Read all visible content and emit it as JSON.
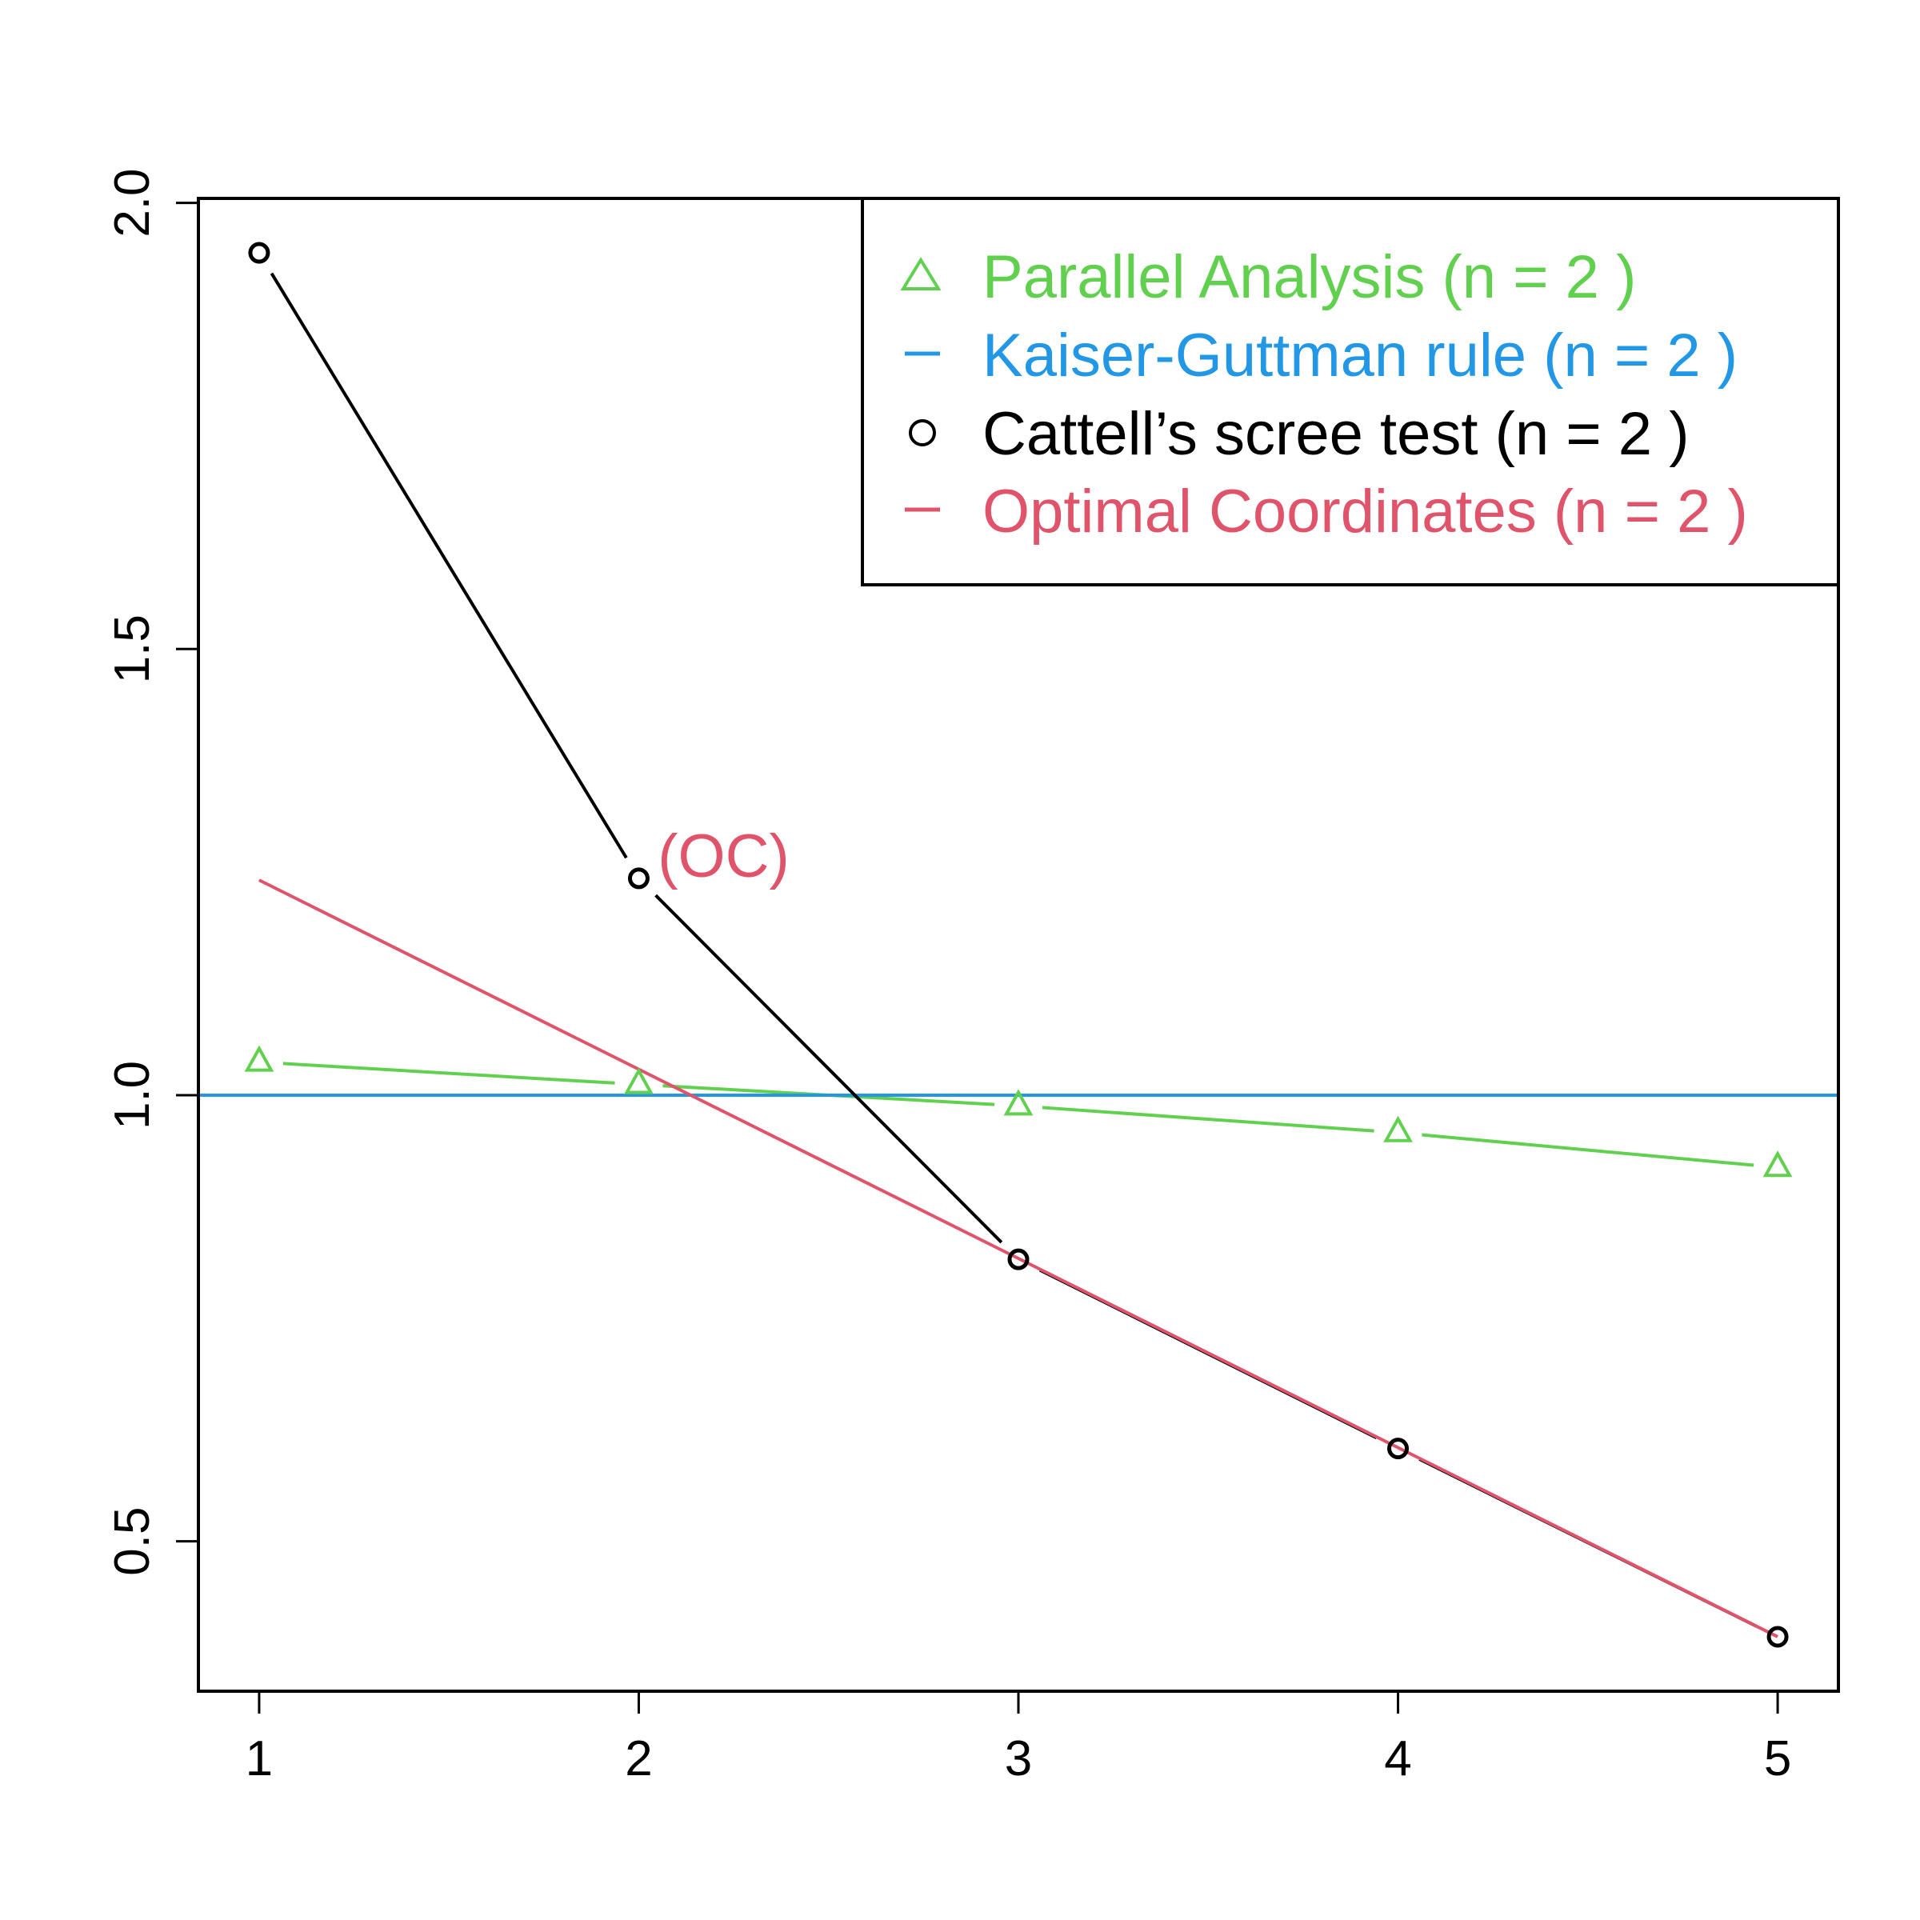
{
  "chart_data": {
    "type": "line",
    "title": "",
    "xlabel": "",
    "ylabel": "",
    "xlim": [
      0.84,
      5.16
    ],
    "ylim": [
      0.332,
      2.005
    ],
    "x_ticks": [
      "1",
      "2",
      "3",
      "4",
      "5"
    ],
    "y_ticks": [
      "0.5",
      "1.0",
      "1.5",
      "2.0"
    ],
    "x_tick_values": [
      1,
      2,
      3,
      4,
      5
    ],
    "y_tick_values": [
      0.5,
      1.0,
      1.5,
      2.0
    ],
    "grid": false,
    "legend_position": "top-right",
    "series": [
      {
        "key": "parallel",
        "name": "Parallel Analysis (n =  2 )",
        "color": "#61D04F",
        "marker": "triangle",
        "x": [
          1,
          2,
          3,
          4,
          5
        ],
        "y": [
          1.037,
          1.012,
          0.988,
          0.958,
          0.919
        ]
      },
      {
        "key": "kaiser",
        "name": "Kaiser-Guttman rule (n =  2 )",
        "color": "#2297E6",
        "marker": "hline",
        "y": 1.0
      },
      {
        "key": "scree",
        "name": "Cattell’s scree test (n =  2 )",
        "color": "#000000",
        "marker": "circle",
        "x": [
          1,
          2,
          3,
          4,
          5
        ],
        "y": [
          1.944,
          1.243,
          0.816,
          0.604,
          0.393
        ]
      },
      {
        "key": "oc",
        "name": "Optimal Coordinates (n =  2 )",
        "color": "#DF536B",
        "marker": "line",
        "x": [
          1,
          5
        ],
        "y": [
          1.241,
          0.393
        ]
      }
    ],
    "annotations": [
      {
        "text": "(OC)",
        "x": 2.05,
        "y": 1.27,
        "color": "#DF536B"
      }
    ]
  }
}
